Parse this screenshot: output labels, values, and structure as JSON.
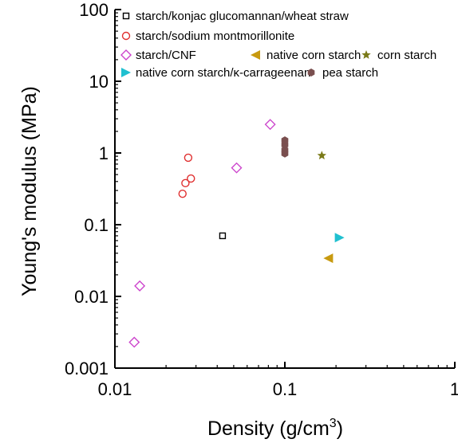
{
  "chart_data": {
    "type": "scatter",
    "title": "",
    "xlabel": "Density (g/cm",
    "xlabel_sup": "3",
    "xlabel_close": ")",
    "ylabel": "Young's modulus (MPa)",
    "xscale": "log",
    "yscale": "log",
    "xlim": [
      0.01,
      1
    ],
    "ylim": [
      0.001,
      100
    ],
    "x_ticks": [
      0.01,
      0.1,
      1
    ],
    "x_tick_labels": [
      "0.01",
      "0.1",
      "1"
    ],
    "y_ticks": [
      0.001,
      0.01,
      0.1,
      1,
      10,
      100
    ],
    "y_tick_labels": [
      "0.001",
      "0.01",
      "0.1",
      "1",
      "10",
      "100"
    ],
    "grid": false,
    "legend_position": "top",
    "series": [
      {
        "name": "starch/konjac glucomannan/wheat straw",
        "marker": "square-open",
        "color": "#000000",
        "points": [
          [
            0.043,
            0.07
          ]
        ]
      },
      {
        "name": "starch/sodium montmorillonite",
        "marker": "circle-open",
        "color": "#e03030",
        "points": [
          [
            0.025,
            0.27
          ],
          [
            0.026,
            0.38
          ],
          [
            0.028,
            0.44
          ],
          [
            0.027,
            0.86
          ]
        ]
      },
      {
        "name": "starch/CNF",
        "marker": "diamond-open",
        "color": "#cc44cc",
        "points": [
          [
            0.013,
            0.0023
          ],
          [
            0.014,
            0.014
          ],
          [
            0.052,
            0.62
          ],
          [
            0.082,
            2.5
          ]
        ]
      },
      {
        "name": "native corn starch",
        "marker": "triangle-left",
        "color": "#c89a10",
        "points": [
          [
            0.18,
            0.034
          ]
        ]
      },
      {
        "name": "corn starch",
        "marker": "star",
        "color": "#7a7a18",
        "points": [
          [
            0.165,
            0.92
          ]
        ]
      },
      {
        "name": "native corn starch/κ-carrageenan",
        "marker": "triangle-right",
        "color": "#20c0d0",
        "points": [
          [
            0.21,
            0.066
          ]
        ]
      },
      {
        "name": "pea starch",
        "marker": "hexagon",
        "color": "#7a4f4f",
        "points": [
          [
            0.1,
            0.98
          ],
          [
            0.1,
            1.1
          ],
          [
            0.1,
            1.3
          ],
          [
            0.1,
            1.5
          ]
        ]
      }
    ]
  }
}
